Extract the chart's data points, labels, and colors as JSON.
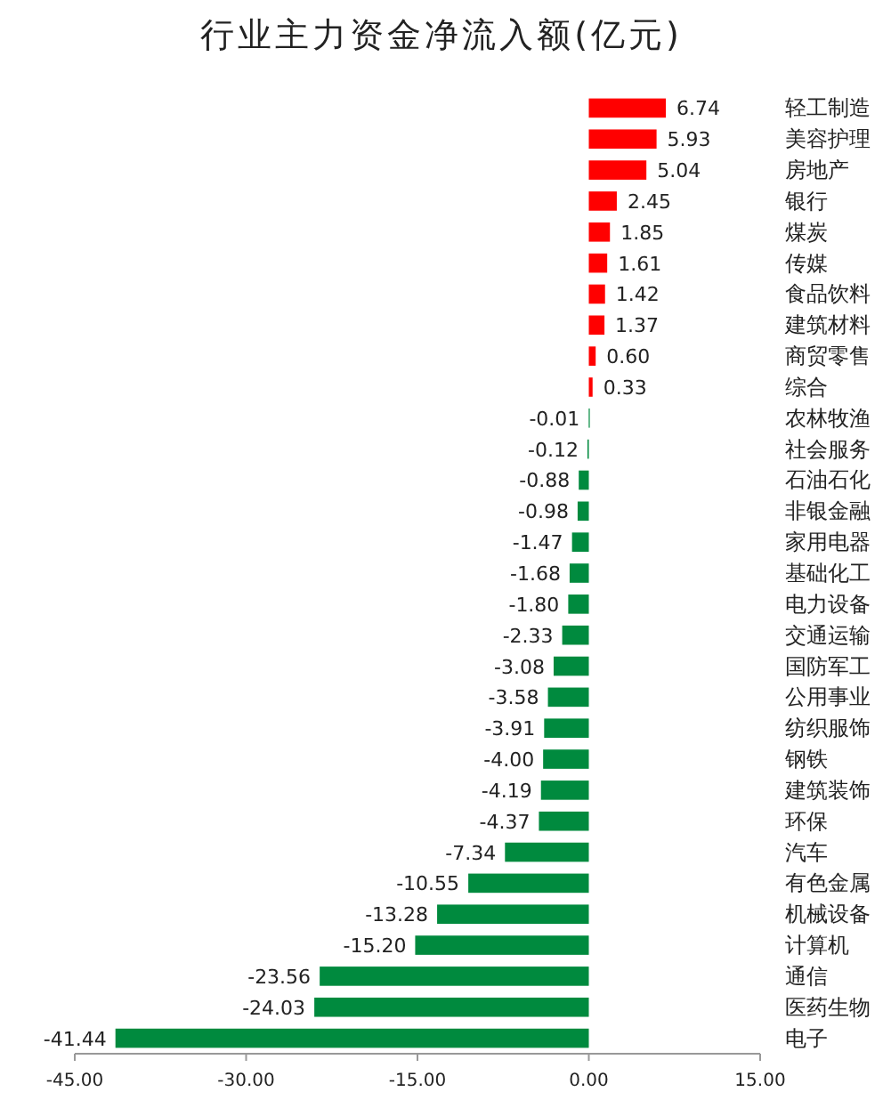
{
  "chart_data": {
    "type": "bar",
    "orientation": "horizontal",
    "title": "行业主力资金净流入额(亿元)",
    "categories": [
      "轻工制造",
      "美容护理",
      "房地产",
      "银行",
      "煤炭",
      "传媒",
      "食品饮料",
      "建筑材料",
      "商贸零售",
      "综合",
      "农林牧渔",
      "社会服务",
      "石油石化",
      "非银金融",
      "家用电器",
      "基础化工",
      "电力设备",
      "交通运输",
      "国防军工",
      "公用事业",
      "纺织服饰",
      "钢铁",
      "建筑装饰",
      "环保",
      "汽车",
      "有色金属",
      "机械设备",
      "计算机",
      "通信",
      "医药生物",
      "电子"
    ],
    "values": [
      6.74,
      5.93,
      5.04,
      2.45,
      1.85,
      1.61,
      1.42,
      1.37,
      0.6,
      0.33,
      -0.01,
      -0.12,
      -0.88,
      -0.98,
      -1.47,
      -1.68,
      -1.8,
      -2.33,
      -3.08,
      -3.58,
      -3.91,
      -4.0,
      -4.19,
      -4.37,
      -7.34,
      -10.55,
      -13.28,
      -15.2,
      -23.56,
      -24.03,
      -41.44
    ],
    "value_labels": [
      "6.74",
      "5.93",
      "5.04",
      "2.45",
      "1.85",
      "1.61",
      "1.42",
      "1.37",
      "0.60",
      "0.33",
      "-0.01",
      "-0.12",
      "-0.88",
      "-0.98",
      "-1.47",
      "-1.68",
      "-1.80",
      "-2.33",
      "-3.08",
      "-3.58",
      "-3.91",
      "-4.00",
      "-4.19",
      "-4.37",
      "-7.34",
      "-10.55",
      "-13.28",
      "-15.20",
      "-23.56",
      "-24.03",
      "-41.44"
    ],
    "colors": [
      "#ff0000",
      "#ff0000",
      "#ff0000",
      "#ff0000",
      "#ff0000",
      "#ff0000",
      "#ff0000",
      "#ff0000",
      "#ff0000",
      "#ff0000",
      "#008a3e",
      "#008a3e",
      "#008a3e",
      "#008a3e",
      "#008a3e",
      "#008a3e",
      "#008a3e",
      "#008a3e",
      "#008a3e",
      "#008a3e",
      "#008a3e",
      "#008a3e",
      "#008a3e",
      "#008a3e",
      "#008a3e",
      "#008a3e",
      "#008a3e",
      "#008a3e",
      "#008a3e",
      "#008a3e",
      "#008a3e"
    ],
    "xlim": [
      -45,
      15
    ],
    "xticks": [
      {
        "value": -45,
        "label": "-45.00"
      },
      {
        "value": -30,
        "label": "-30.00"
      },
      {
        "value": -15,
        "label": "-15.00"
      },
      {
        "value": 0,
        "label": "0.00"
      },
      {
        "value": 15,
        "label": "15.00"
      }
    ],
    "grid": false
  }
}
